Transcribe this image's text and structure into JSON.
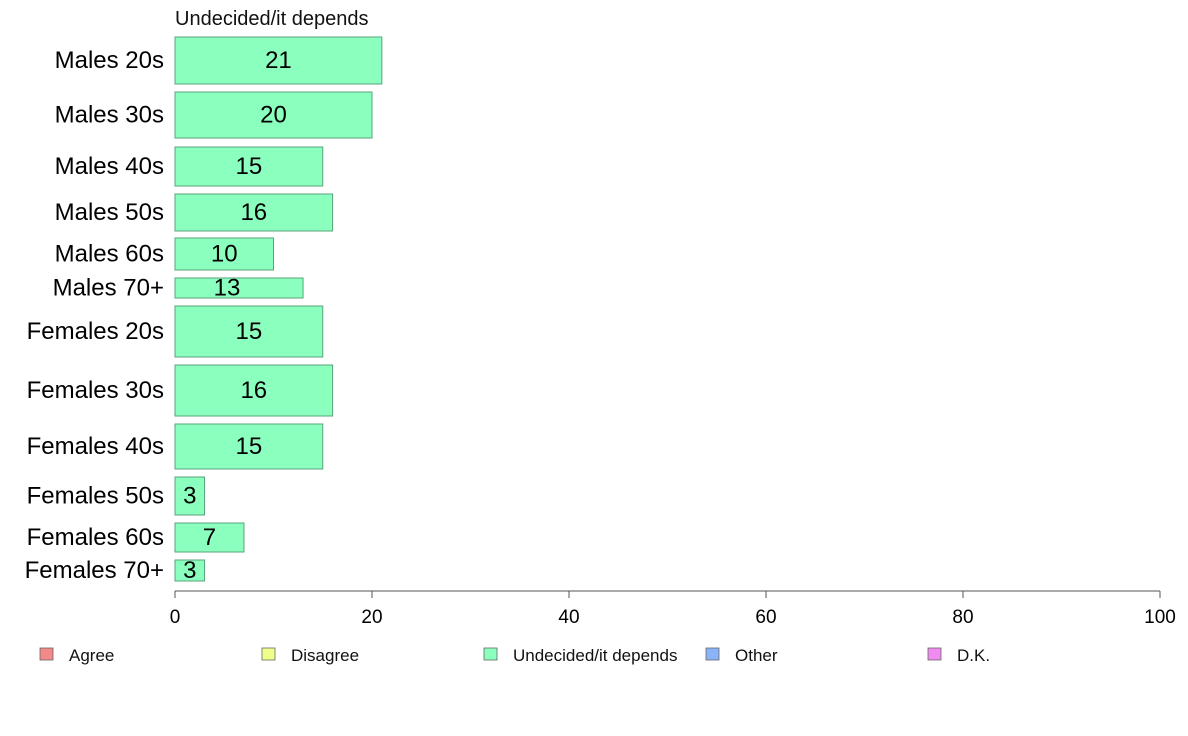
{
  "chart_data": {
    "type": "bar",
    "orientation": "horizontal",
    "title": "Undecided/it depends",
    "categories": [
      "Males 20s",
      "Males 30s",
      "Males 40s",
      "Males 50s",
      "Males 60s",
      "Males 70+",
      "Females 20s",
      "Females 30s",
      "Females 40s",
      "Females 50s",
      "Females 60s",
      "Females 70+"
    ],
    "values": [
      21,
      20,
      15,
      16,
      10,
      13,
      15,
      16,
      15,
      3,
      7,
      3
    ],
    "value_labels": [
      "21",
      "20",
      "15",
      "16",
      "10",
      "13",
      "15",
      "16",
      "15",
      "3",
      "7",
      "3"
    ],
    "xlim": [
      0,
      100
    ],
    "xticks": [
      0,
      20,
      40,
      60,
      80,
      100
    ],
    "xtick_labels": [
      "0",
      "20",
      "40",
      "60",
      "80",
      "100"
    ],
    "grid": false,
    "legend_position": "bottom",
    "legend": [
      {
        "label": "Agree",
        "color": "#f4898a"
      },
      {
        "label": "Disagree",
        "color": "#efff8a"
      },
      {
        "label": "Undecided/it depends",
        "color": "#8affbe"
      },
      {
        "label": "Other",
        "color": "#8ab4f8"
      },
      {
        "label": "D.K.",
        "color": "#f18af1"
      }
    ],
    "bar_color": "#8affbe",
    "bar_border_color": "#5aa37a"
  }
}
